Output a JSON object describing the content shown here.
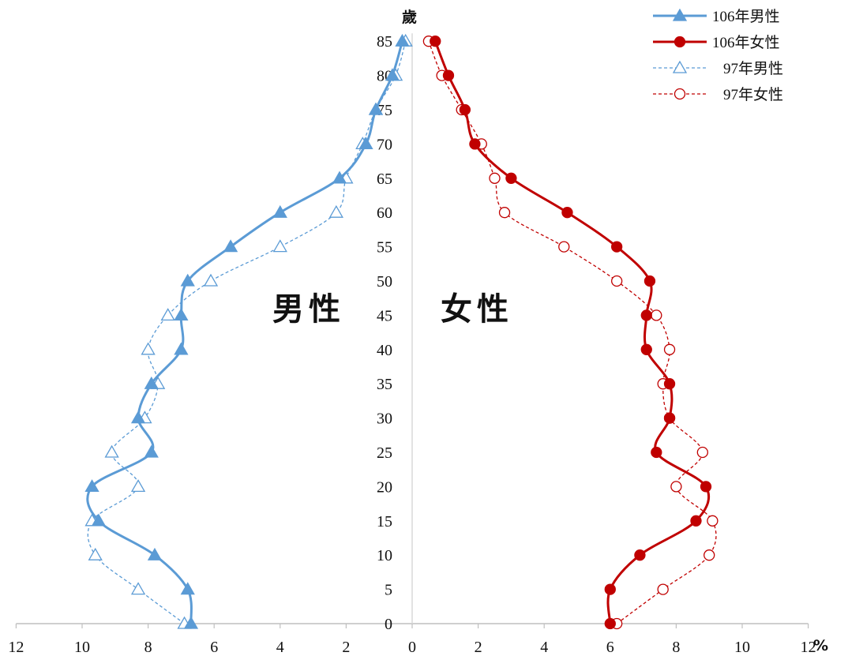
{
  "chart_data": {
    "type": "line",
    "layout": "population-pyramid",
    "ages": [
      0,
      5,
      10,
      15,
      20,
      25,
      30,
      35,
      40,
      45,
      50,
      55,
      60,
      65,
      70,
      75,
      80,
      85
    ],
    "age_unit": "歲",
    "x_unit": "%",
    "x_ticks": [
      "12",
      "10",
      "8",
      "6",
      "4",
      "2",
      "0",
      "2",
      "4",
      "6",
      "8",
      "10",
      "12"
    ],
    "xlim": [
      -12,
      12
    ],
    "ylim": [
      0,
      85
    ],
    "side_labels": {
      "male": "男性",
      "female": "女性"
    },
    "legend_position": "top-right",
    "series": [
      {
        "name": "106年男性",
        "side": "male",
        "style": "solid",
        "marker": "filled-triangle",
        "color": "#5b9bd5",
        "values": [
          6.7,
          6.8,
          7.8,
          9.5,
          9.7,
          7.9,
          8.3,
          7.9,
          7.0,
          7.0,
          6.8,
          5.5,
          4.0,
          2.2,
          1.4,
          1.1,
          0.6,
          0.3
        ]
      },
      {
        "name": "106年女性",
        "side": "female",
        "style": "solid",
        "marker": "filled-circle",
        "color": "#c00000",
        "values": [
          6.0,
          6.0,
          6.9,
          8.6,
          8.9,
          7.4,
          7.8,
          7.8,
          7.1,
          7.1,
          7.2,
          6.2,
          4.7,
          3.0,
          1.9,
          1.6,
          1.1,
          0.7
        ]
      },
      {
        "name": "97年男性",
        "side": "male",
        "style": "dashed",
        "marker": "hollow-triangle",
        "color": "#5b9bd5",
        "values": [
          6.9,
          8.3,
          9.6,
          9.7,
          8.3,
          9.1,
          8.1,
          7.7,
          8.0,
          7.4,
          6.1,
          4.0,
          2.3,
          2.0,
          1.5,
          1.1,
          0.5,
          0.2
        ]
      },
      {
        "name": "97年女性",
        "side": "female",
        "style": "dashed",
        "marker": "hollow-circle",
        "color": "#c00000",
        "values": [
          6.2,
          7.6,
          9.0,
          9.1,
          8.0,
          8.8,
          7.8,
          7.6,
          7.8,
          7.4,
          6.2,
          4.6,
          2.8,
          2.5,
          2.1,
          1.5,
          0.9,
          0.5
        ]
      }
    ]
  }
}
